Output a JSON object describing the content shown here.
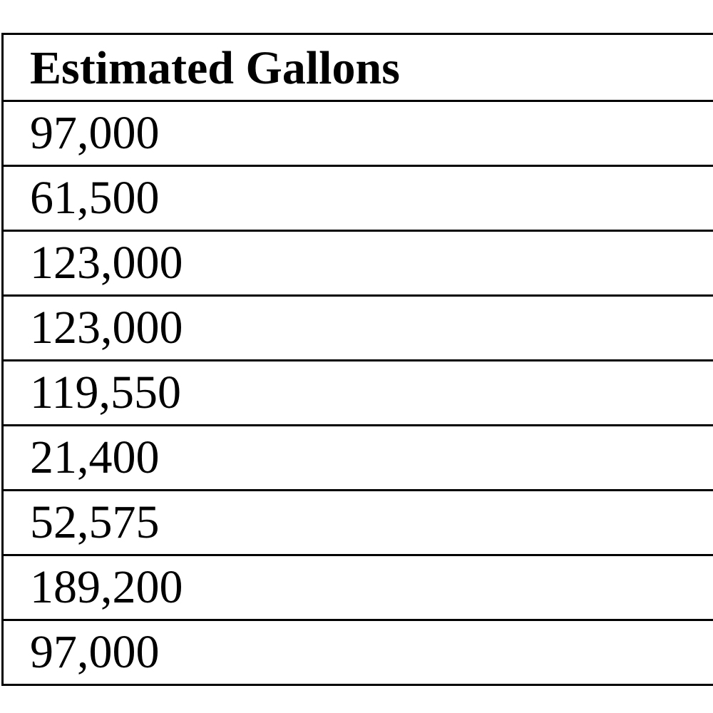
{
  "table": {
    "header": "Estimated Gallons",
    "rows": [
      "97,000",
      "61,500",
      "123,000",
      "123,000",
      "119,550",
      "21,400",
      "52,575",
      "189,200",
      "97,000"
    ]
  }
}
